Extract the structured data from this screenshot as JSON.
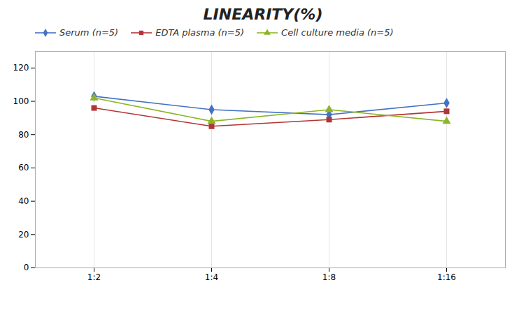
{
  "chart_data": {
    "type": "line",
    "title": "LINEARITY(%)",
    "categories": [
      "1:2",
      "1:4",
      "1:8",
      "1:16"
    ],
    "series": [
      {
        "name": "Serum (n=5)",
        "color": "#4472C4",
        "marker": "diamond",
        "values": [
          103,
          95,
          92,
          99
        ]
      },
      {
        "name": "EDTA plasma (n=5)",
        "color": "#B23535",
        "marker": "square",
        "values": [
          96,
          85,
          89,
          94
        ]
      },
      {
        "name": "Cell culture media (n=5)",
        "color": "#8DB526",
        "marker": "triangle",
        "values": [
          102,
          88,
          95,
          88
        ]
      }
    ],
    "ylim": [
      0,
      130
    ],
    "yticks": [
      0,
      20,
      40,
      60,
      80,
      100,
      120
    ],
    "grid": "x",
    "legend": "upper left"
  }
}
